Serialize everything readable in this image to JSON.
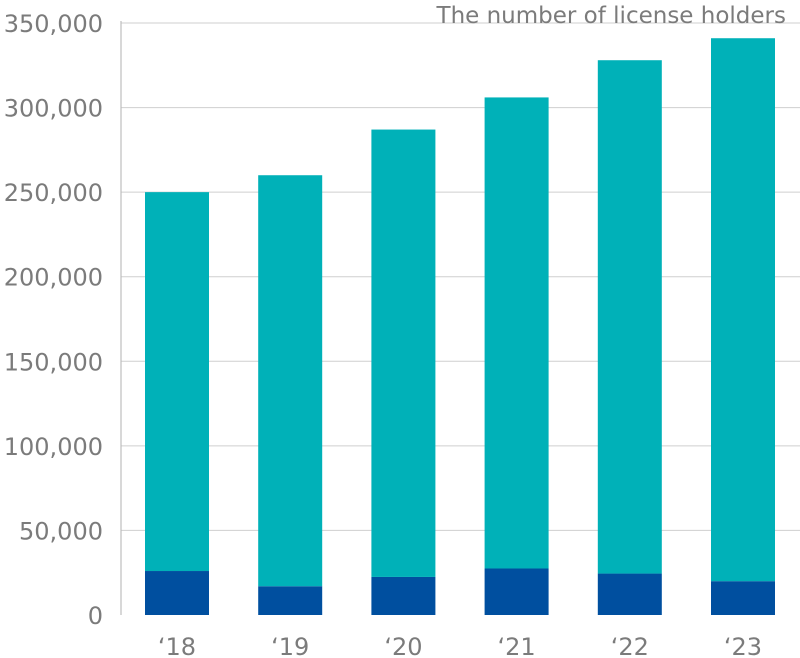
{
  "chart_data": {
    "type": "bar",
    "stacked": true,
    "title": "The number of license holders",
    "categories": [
      "‘18",
      "‘19",
      "‘20",
      "‘21",
      "‘22",
      "‘23"
    ],
    "series": [
      {
        "key": "lower",
        "color": "#004f9f",
        "values": [
          26000,
          17000,
          22500,
          27500,
          24500,
          20000
        ]
      },
      {
        "key": "upper",
        "color": "#00b1b8",
        "values": [
          224000,
          243000,
          264500,
          278500,
          303500,
          321000
        ]
      }
    ],
    "ylim": [
      0,
      350000
    ],
    "yticks": [
      0,
      50000,
      100000,
      150000,
      200000,
      250000,
      300000,
      350000
    ],
    "ytick_labels": [
      "0",
      "50,000",
      "100,000",
      "150,000",
      "200,000",
      "250,000",
      "300,000",
      "350,000"
    ],
    "grid": true,
    "legend": "none"
  }
}
